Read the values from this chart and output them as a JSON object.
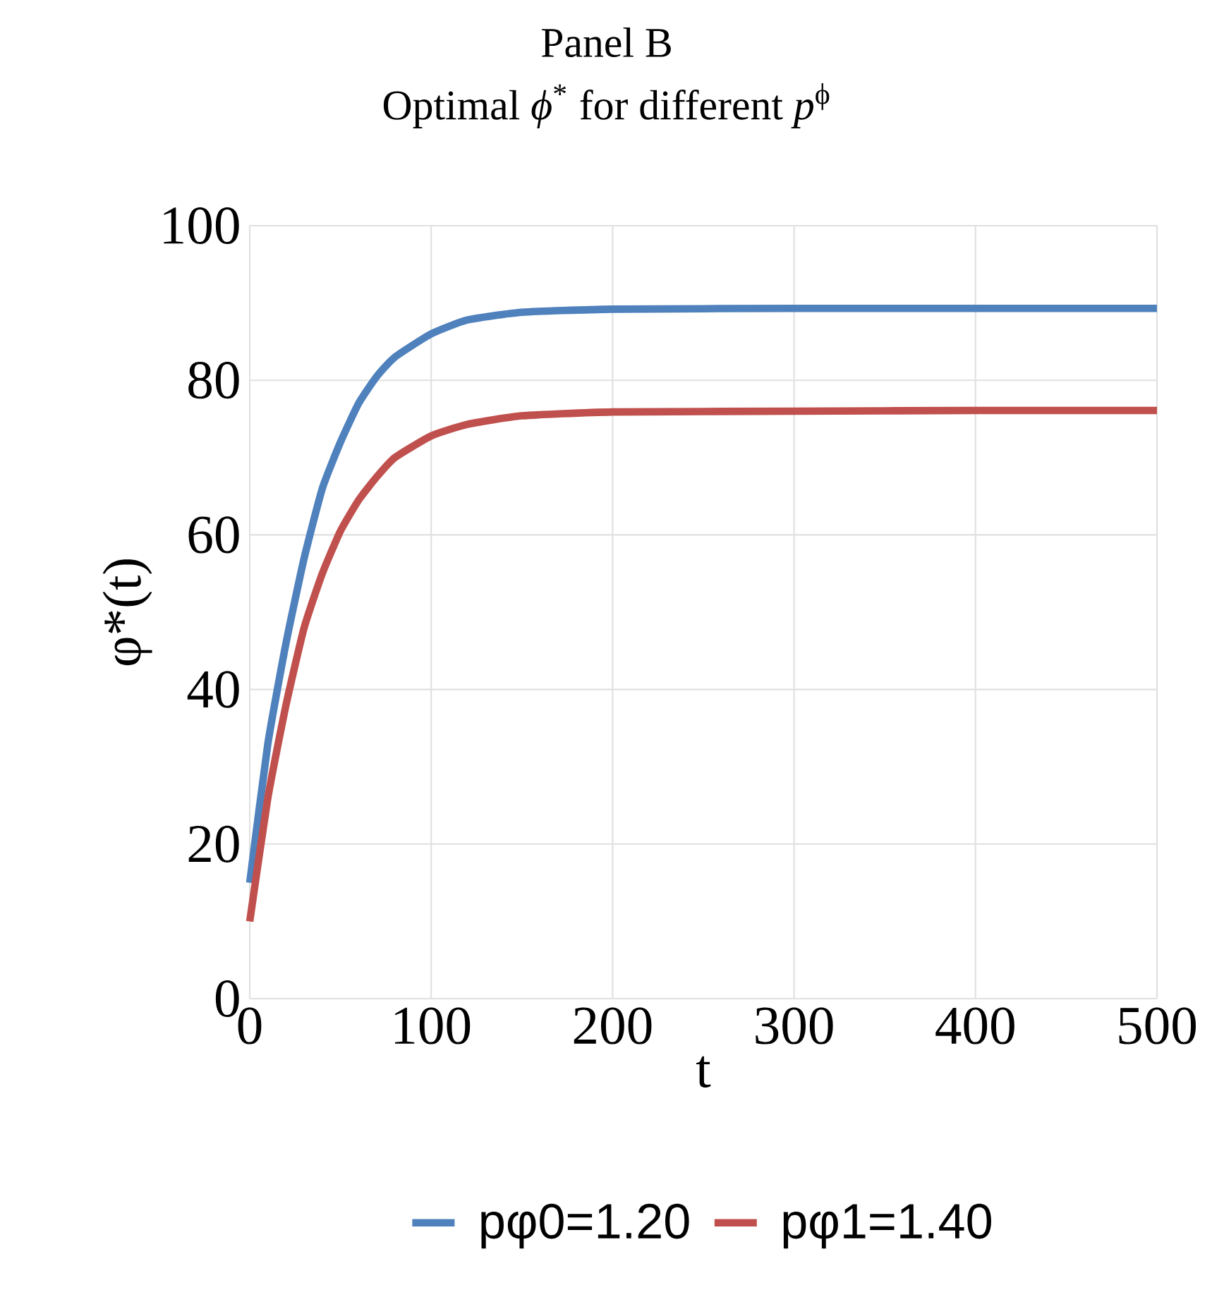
{
  "chart_data": {
    "type": "line",
    "title": "Panel B",
    "subtitle": "Optimal *ϕ*$^{*}$ for different *p*$^{ϕ}$",
    "xlabel": "t",
    "ylabel": "φ*(t)",
    "xlim": [
      0,
      500
    ],
    "ylim": [
      0,
      100
    ],
    "xticks": [
      0,
      100,
      200,
      300,
      400,
      500
    ],
    "yticks": [
      0,
      20,
      40,
      60,
      80,
      100
    ],
    "grid": true,
    "legend": "bottom",
    "series": [
      {
        "name": "pφ0=1.20",
        "color": "#4f81bd",
        "x": [
          0,
          10,
          20,
          30,
          40,
          50,
          60,
          70,
          80,
          100,
          120,
          150,
          200,
          300,
          400,
          500
        ],
        "values": [
          15,
          33,
          46,
          57,
          66,
          72,
          77,
          80.5,
          83,
          86,
          87.8,
          88.8,
          89.2,
          89.3,
          89.3,
          89.3
        ]
      },
      {
        "name": "pφ1=1.40",
        "color": "#c0504d",
        "x": [
          0,
          10,
          20,
          30,
          40,
          50,
          60,
          70,
          80,
          100,
          120,
          150,
          200,
          300,
          400,
          500
        ],
        "values": [
          10,
          26,
          38,
          48,
          55,
          60.5,
          64.5,
          67.5,
          70,
          72.8,
          74.3,
          75.4,
          75.9,
          76,
          76.1,
          76.1
        ]
      }
    ]
  }
}
